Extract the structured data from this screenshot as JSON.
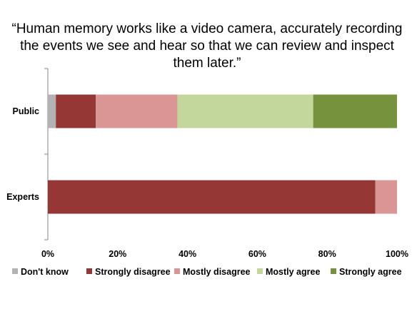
{
  "chart_data": {
    "type": "bar",
    "orientation": "horizontal",
    "stacked": true,
    "title_lines": [
      "“Human memory works like a video camera, accurately recording",
      "the events we see and hear so that we can review and inspect",
      "them later.”"
    ],
    "categories": [
      "Public",
      "Experts"
    ],
    "series": [
      {
        "name": "Don't know",
        "color": "#b3b3b3",
        "values": [
          2.3,
          0
        ]
      },
      {
        "name": "Strongly disagree",
        "color": "#953735",
        "values": [
          11.4,
          93.8
        ]
      },
      {
        "name": "Mostly disagree",
        "color": "#da9694",
        "values": [
          23.4,
          6.2
        ]
      },
      {
        "name": "Mostly agree",
        "color": "#c3d69b",
        "values": [
          38.9,
          0
        ]
      },
      {
        "name": "Strongly agree",
        "color": "#76923c",
        "values": [
          24.0,
          0
        ]
      }
    ],
    "xlim": [
      0,
      100
    ],
    "xticks": [
      "0%",
      "20%",
      "40%",
      "60%",
      "80%",
      "100%"
    ],
    "grid": false,
    "legend_position": "bottom"
  }
}
